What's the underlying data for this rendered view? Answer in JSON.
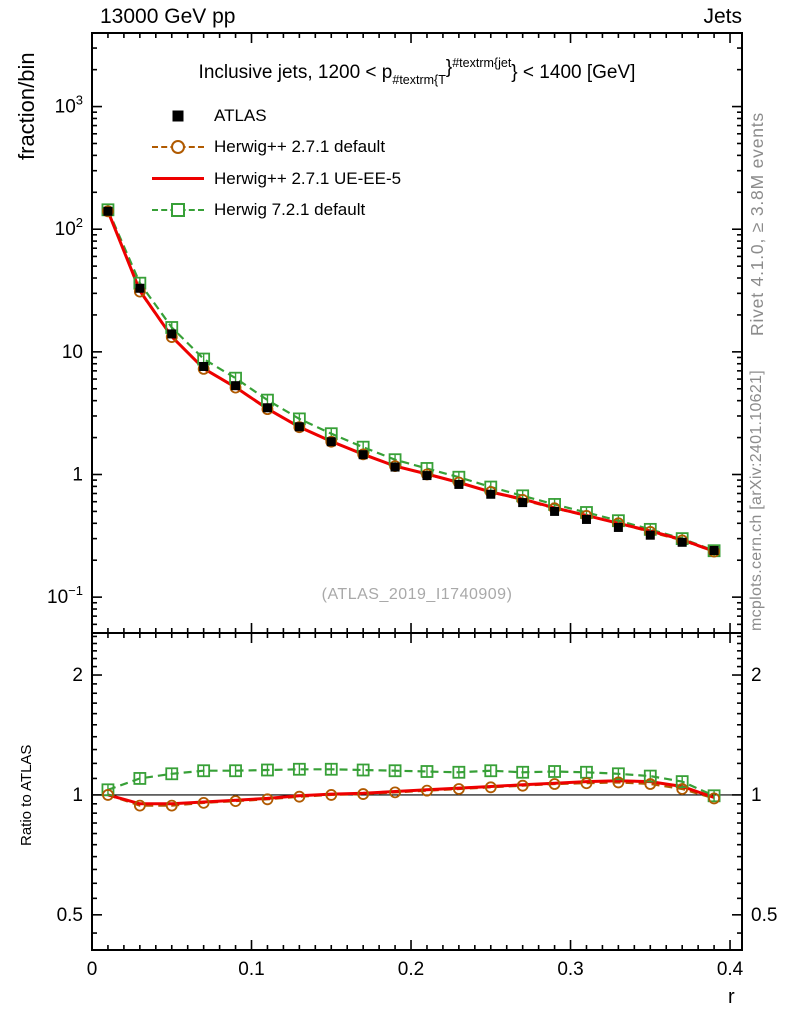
{
  "header": {
    "left": "13000 GeV pp",
    "right": "Jets"
  },
  "panel_title": {
    "pre": "Inclusive jets, 1200 < p",
    "sub": "#textrm{T",
    "brace1": "}",
    "sup": "#textrm{jet",
    "brace2": "}",
    "post": " < 1400 [GeV]"
  },
  "watermark": "(ATLAS_2019_I1740909)",
  "side_notes": {
    "top": "Rivet 4.1.0, ≥ 3.8M events",
    "bottom": "mcplots.cern.ch [arXiv:2401.10621]"
  },
  "colors": {
    "atlas": "#000000",
    "herwigpp_default": "#b05a00",
    "herwigpp_ueee5": "#ee0000",
    "herwig7_default": "#37a037",
    "frame": "#000000",
    "watermark_gray": "#a9a9a9",
    "sidenote_gray": "#8c8c8c"
  },
  "legend": {
    "items": [
      {
        "label": "ATLAS",
        "marker": "filled-square",
        "color": "#000000"
      },
      {
        "label": "Herwig++ 2.7.1 default",
        "marker": "dashed-circle",
        "color": "#b05a00"
      },
      {
        "label": "Herwig++ 2.7.1 UE-EE-5",
        "marker": "solid-line",
        "color": "#ee0000"
      },
      {
        "label": "Herwig 7.2.1 default",
        "marker": "dashed-square",
        "color": "#37a037"
      }
    ]
  },
  "chart_data": {
    "type": "line",
    "title": "Inclusive jets, 1200 < pT^jet < 1400 [GeV]",
    "x_label": "r",
    "y_label": "fraction/bin",
    "ratio_label": "Ratio to ATLAS",
    "x_range": [
      0,
      0.4075
    ],
    "y_range": [
      0.051,
      3980
    ],
    "ratio_range": [
      0.408,
      2.55
    ],
    "x_ticks": [
      0,
      0.1,
      0.2,
      0.3,
      0.4
    ],
    "x_tick_labels": [
      "0",
      "0.1",
      "0.2",
      "0.3",
      "0.4"
    ],
    "y_ticks": [
      1000,
      100,
      10,
      1,
      0.1
    ],
    "y_tick_labels": [
      "10^3",
      "10^2",
      "10",
      "1",
      "10^-1"
    ],
    "ratio_ticks": [
      2,
      1,
      0.5
    ],
    "ratio_tick_labels": [
      "2",
      "1",
      "0.5"
    ],
    "x": [
      0.01,
      0.03,
      0.05,
      0.07,
      0.09,
      0.11,
      0.13,
      0.15,
      0.17,
      0.19,
      0.21,
      0.23,
      0.25,
      0.27,
      0.29,
      0.31,
      0.33,
      0.35,
      0.37,
      0.39
    ],
    "series": [
      {
        "name": "ATLAS",
        "color": "#000000",
        "marker": "filled-square",
        "line": "none",
        "values": [
          140,
          33,
          14,
          7.6,
          5.3,
          3.5,
          2.45,
          1.85,
          1.45,
          1.15,
          0.98,
          0.83,
          0.69,
          0.59,
          0.5,
          0.43,
          0.37,
          0.32,
          0.28,
          0.24
        ]
      },
      {
        "name": "Herwig++ 2.7.1 default",
        "color": "#b05a00",
        "marker": "open-circle",
        "line": "dashed",
        "values": [
          140,
          31.0,
          13.2,
          7.26,
          5.11,
          3.41,
          2.43,
          1.85,
          1.46,
          1.17,
          1.0,
          0.86,
          0.72,
          0.62,
          0.53,
          0.46,
          0.4,
          0.34,
          0.29,
          0.235
        ]
      },
      {
        "name": "Herwig++ 2.7.1 UE-EE-5",
        "color": "#ee0000",
        "marker": "none",
        "line": "solid",
        "values": [
          140,
          31.4,
          13.3,
          7.3,
          5.14,
          3.43,
          2.44,
          1.86,
          1.46,
          1.17,
          1.01,
          0.86,
          0.72,
          0.63,
          0.535,
          0.464,
          0.4,
          0.346,
          0.294,
          0.236
        ]
      },
      {
        "name": "Herwig 7.2.1 default",
        "color": "#37a037",
        "marker": "open-square",
        "line": "dashed",
        "values": [
          144,
          36.3,
          15.8,
          8.74,
          6.1,
          4.04,
          2.84,
          2.15,
          1.67,
          1.32,
          1.12,
          0.95,
          0.79,
          0.67,
          0.57,
          0.49,
          0.42,
          0.357,
          0.3,
          0.239
        ]
      }
    ],
    "ratio_series": [
      {
        "name": "Herwig++ 2.7.1 default",
        "color": "#b05a00",
        "marker": "open-circle",
        "line": "dashed",
        "values": [
          1.0,
          0.94,
          0.94,
          0.955,
          0.965,
          0.975,
          0.99,
          1.0,
          1.005,
          1.015,
          1.025,
          1.035,
          1.045,
          1.055,
          1.065,
          1.07,
          1.075,
          1.065,
          1.035,
          0.98
        ]
      },
      {
        "name": "Herwig++ 2.7.1 UE-EE-5",
        "color": "#ee0000",
        "marker": "none",
        "line": "solid",
        "values": [
          1.0,
          0.95,
          0.95,
          0.96,
          0.97,
          0.98,
          0.995,
          1.005,
          1.01,
          1.02,
          1.03,
          1.04,
          1.05,
          1.06,
          1.07,
          1.08,
          1.085,
          1.08,
          1.05,
          0.985
        ]
      },
      {
        "name": "Herwig 7.2.1 default",
        "color": "#37a037",
        "marker": "open-square",
        "line": "dashed",
        "values": [
          1.03,
          1.1,
          1.13,
          1.15,
          1.15,
          1.155,
          1.16,
          1.16,
          1.155,
          1.15,
          1.145,
          1.14,
          1.15,
          1.14,
          1.145,
          1.14,
          1.13,
          1.115,
          1.08,
          0.995
        ]
      }
    ],
    "legend_position": "top-left",
    "grid": false,
    "y_scale": "log",
    "ratio_scale": "log"
  }
}
